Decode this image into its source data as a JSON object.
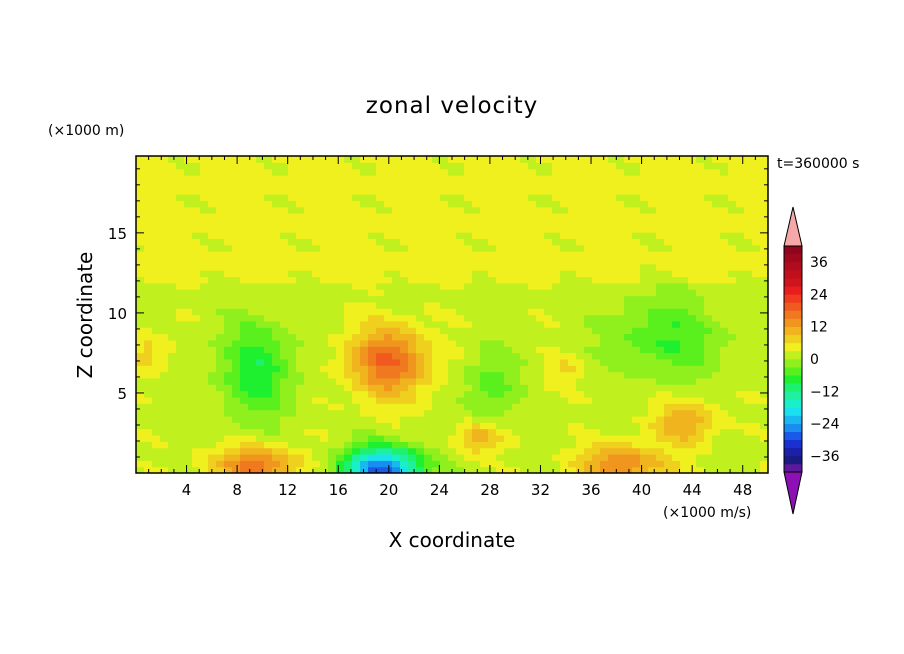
{
  "chart_data": {
    "type": "heatmap",
    "title": "zonal velocity",
    "xlabel": "X coordinate",
    "ylabel": "Z coordinate",
    "x_unit": "(×1000 m/s)",
    "y_unit": "(×1000 m)",
    "time_label": "t=360000 s",
    "xlim": [
      0,
      50
    ],
    "ylim": [
      0,
      19.8
    ],
    "x_ticks": [
      4,
      8,
      12,
      16,
      20,
      24,
      28,
      32,
      36,
      40,
      44,
      48
    ],
    "y_ticks": [
      5,
      10,
      15
    ],
    "colorbar": {
      "levels": [
        -42,
        -39,
        -36,
        -33,
        -30,
        -27,
        -24,
        -21,
        -18,
        -15,
        -12,
        -9,
        -6,
        -3,
        0,
        3,
        6,
        9,
        12,
        15,
        18,
        21,
        24,
        27,
        30,
        33,
        36,
        39,
        42
      ],
      "colors": [
        "#5a1a9a",
        "#1a1a80",
        "#1a20a8",
        "#1a30d0",
        "#1a5ae8",
        "#1a8ef0",
        "#1ab8f0",
        "#1ae0f0",
        "#1af0c8",
        "#1ef0a0",
        "#1ef070",
        "#1ef030",
        "#5af01e",
        "#90f01e",
        "#c0f01e",
        "#f0f01e",
        "#f0d01e",
        "#f0b41e",
        "#f0961e",
        "#f0781e",
        "#f05a1e",
        "#f03c1e",
        "#e81e1e",
        "#d0141e",
        "#c0101e",
        "#b00c1e",
        "#a0081e",
        "#90041e"
      ],
      "tick_labels": [
        "36",
        "24",
        "12",
        "0",
        "−12",
        "−24",
        "−36"
      ],
      "tick_values": [
        36,
        24,
        12,
        0,
        -12,
        -24,
        -36
      ],
      "over_color": "#f4a8a8",
      "under_color": "#8c10b4"
    },
    "features": [
      {
        "x": 9.5,
        "z": 0.5,
        "value": 14,
        "sx": 3.5,
        "sz": 1.2
      },
      {
        "x": 38.5,
        "z": 0.6,
        "value": 13,
        "sx": 3.5,
        "sz": 1.2
      },
      {
        "x": 19.5,
        "z": 0.2,
        "value": -30,
        "sx": 3.2,
        "sz": 1.4
      },
      {
        "x": 20,
        "z": 7,
        "value": 16,
        "sx": 3.2,
        "sz": 2.2
      },
      {
        "x": 27,
        "z": 2.2,
        "value": 9,
        "sx": 1.8,
        "sz": 1
      },
      {
        "x": 43.5,
        "z": 3.2,
        "value": 10,
        "sx": 2.5,
        "sz": 1.3
      },
      {
        "x": 9.5,
        "z": 6.5,
        "value": -10,
        "sx": 3,
        "sz": 3
      },
      {
        "x": 42,
        "z": 8.5,
        "value": -8,
        "sx": 4.5,
        "sz": 2.5
      },
      {
        "x": 28,
        "z": 5.5,
        "value": -7,
        "sx": 2,
        "sz": 2.2
      },
      {
        "x": 1,
        "z": 7.5,
        "value": 6,
        "sx": 1.5,
        "sz": 1.2
      },
      {
        "x": 34,
        "z": 6.5,
        "value": 4,
        "sx": 1.5,
        "sz": 0.9
      }
    ]
  }
}
